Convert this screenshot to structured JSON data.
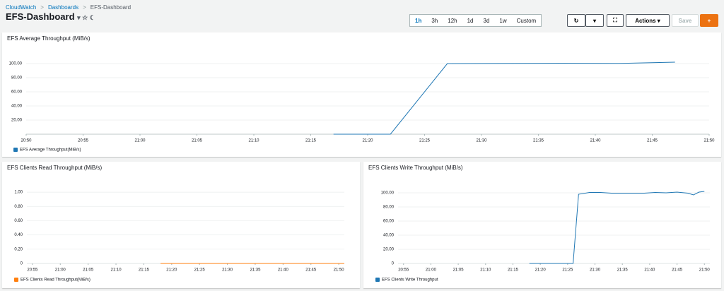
{
  "breadcrumb": [
    "CloudWatch",
    "Dashboards",
    "EFS-Dashboard"
  ],
  "header": {
    "title": "EFS-Dashboard"
  },
  "toolbar": {
    "ranges": [
      "1h",
      "3h",
      "12h",
      "1d",
      "3d",
      "1w",
      "Custom"
    ],
    "actions": "Actions",
    "save": "Save"
  },
  "chart_data": [
    {
      "type": "line",
      "title": "EFS Average Throughput (MiB/s)",
      "x": [
        "21:17",
        "21:22",
        "21:27",
        "21:32",
        "21:37",
        "21:42",
        "21:47"
      ],
      "series": [
        {
          "name": "EFS Average Throughput(MiB/s)",
          "color": "#1f77b4",
          "values": [
            0,
            0,
            100,
            100.3,
            100.5,
            100.2,
            102
          ]
        }
      ],
      "xlim": [
        "20:50",
        "21:50"
      ],
      "ylim": [
        0,
        120
      ],
      "xticks": [
        "20:50",
        "20:55",
        "21:00",
        "21:05",
        "21:10",
        "21:15",
        "21:20",
        "21:25",
        "21:30",
        "21:35",
        "21:40",
        "21:45",
        "21:50"
      ],
      "yticks": [
        {
          "value": 20,
          "label": "20.00"
        },
        {
          "value": 40,
          "label": "40.00"
        },
        {
          "value": 60,
          "label": "60.00"
        },
        {
          "value": 80,
          "label": "80.00"
        },
        {
          "value": 100,
          "label": "100.00"
        }
      ],
      "grid": true
    },
    {
      "type": "line",
      "title": "EFS Clients Read Throughput (MiB/s)",
      "x": [
        "21:18",
        "21:23",
        "21:28",
        "21:33",
        "21:38",
        "21:43",
        "21:48",
        "21:51"
      ],
      "series": [
        {
          "name": "EFS Clients Read Throughput(MiB/s)",
          "color": "#ff7f0e",
          "values": [
            0,
            0,
            0,
            0,
            0,
            0,
            0,
            0
          ]
        }
      ],
      "xlim": [
        "20:54",
        "21:51"
      ],
      "ylim": [
        0,
        1.1
      ],
      "xticks": [
        "20:55",
        "21:00",
        "21:05",
        "21:10",
        "21:15",
        "21:20",
        "21:25",
        "21:30",
        "21:35",
        "21:40",
        "21:45",
        "21:50"
      ],
      "yticks": [
        0,
        {
          "value": 0.2,
          "label": "0.20"
        },
        {
          "value": 0.4,
          "label": "0.40"
        },
        {
          "value": 0.6,
          "label": "0.60"
        },
        {
          "value": 0.8,
          "label": "0.80"
        },
        {
          "value": 1,
          "label": "1.00"
        }
      ],
      "grid": true
    },
    {
      "type": "line",
      "title": "EFS Clients Write Throughput (MiB/s)",
      "x": [
        "21:18",
        "21:22",
        "21:26",
        "21:27",
        "21:29",
        "21:31",
        "21:33",
        "21:36",
        "21:39",
        "21:41",
        "21:43",
        "21:45",
        "21:47",
        "21:48",
        "21:49",
        "21:50"
      ],
      "series": [
        {
          "name": "EFS Clients Write Throughput",
          "color": "#1f77b4",
          "values": [
            0,
            0,
            0,
            98,
            100.5,
            100.5,
            99.5,
            99.5,
            99.5,
            100.5,
            100,
            101,
            99.5,
            97,
            101,
            102
          ]
        }
      ],
      "xlim": [
        "20:54",
        "21:51"
      ],
      "ylim": [
        0,
        110
      ],
      "xticks": [
        "20:55",
        "21:00",
        "21:05",
        "21:10",
        "21:15",
        "21:20",
        "21:25",
        "21:30",
        "21:35",
        "21:40",
        "21:45",
        "21:50"
      ],
      "yticks": [
        0,
        {
          "value": 20,
          "label": "20.00"
        },
        {
          "value": 40,
          "label": "40.00"
        },
        {
          "value": 60,
          "label": "60.00"
        },
        {
          "value": 80,
          "label": "80.00"
        },
        {
          "value": 100,
          "label": "100.00"
        }
      ],
      "grid": true
    }
  ]
}
